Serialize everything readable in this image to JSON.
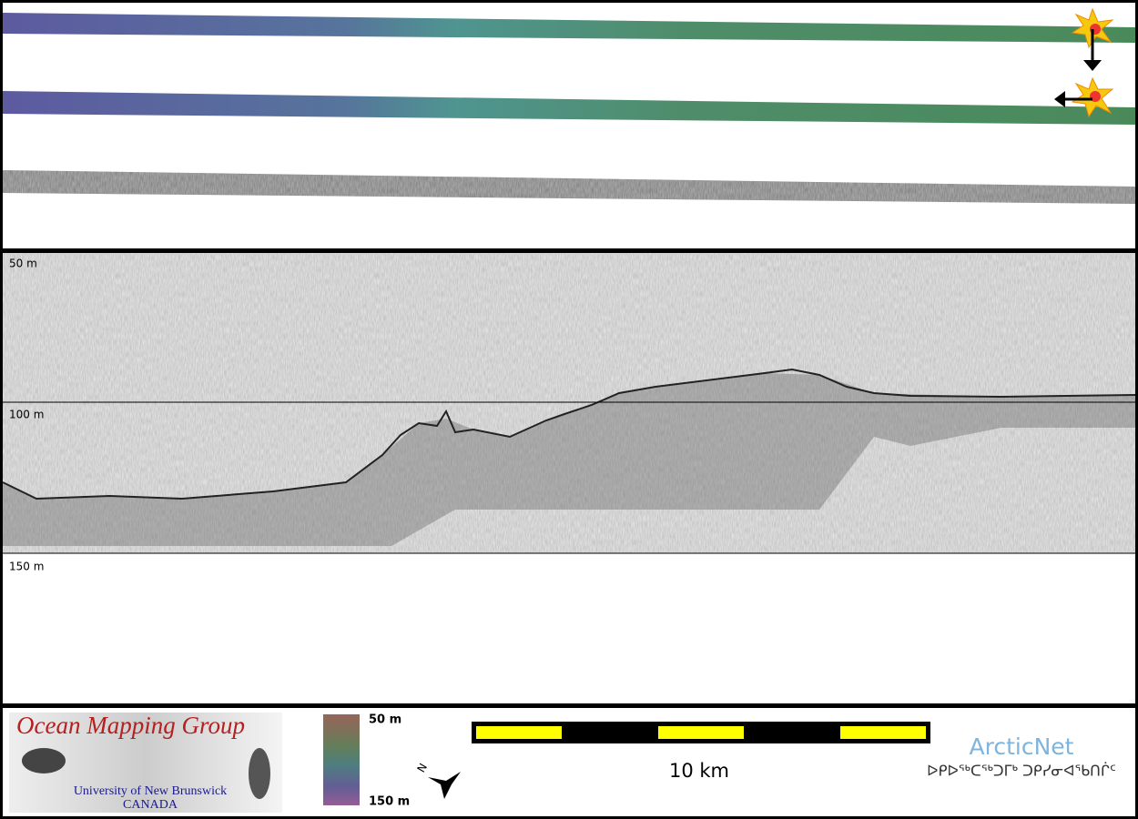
{
  "depth_labels": [
    "50 m",
    "100 m",
    "150 m"
  ],
  "logo": {
    "title": "Ocean Mapping Group",
    "university": "University of New Brunswick",
    "country": "CANADA"
  },
  "colorbar": {
    "top": "50 m",
    "bottom": "150 m"
  },
  "compass": "N",
  "scale_bar": "10 km",
  "partner": {
    "name": "ArcticNet",
    "syllabics": "ᐅᑭᐅᖅᑕᖅᑐᒥᒃ ᑐᑭᓯᓂᐊᖃᑎᒌᑦ"
  }
}
